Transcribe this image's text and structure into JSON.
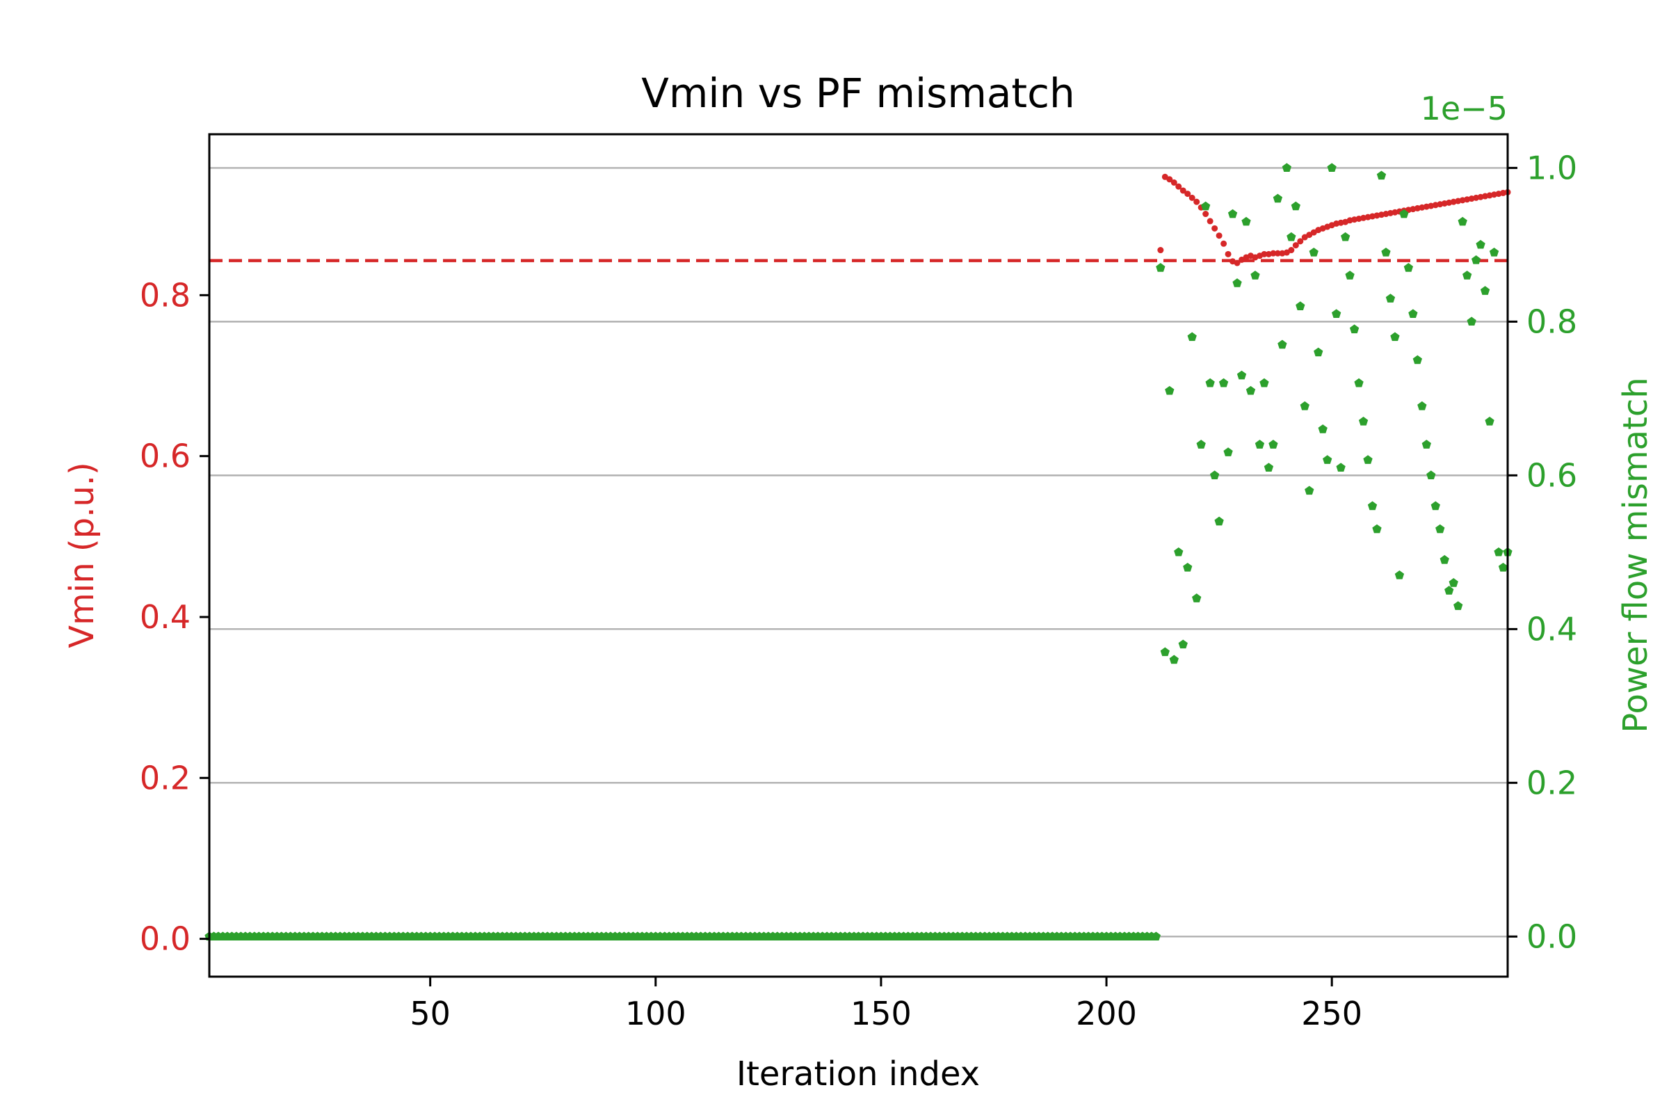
{
  "chart_data": {
    "type": "scatter",
    "title": "Vmin vs PF mismatch",
    "xlabel": "Iteration index",
    "xlim": [
      1,
      289
    ],
    "xticks": [
      50,
      100,
      150,
      200,
      250
    ],
    "grid": "horizontal",
    "colors": {
      "vmin": "#d62728",
      "mismatch": "#2ca02c",
      "grid": "#b0b0b0",
      "axes": "#000000"
    },
    "left_axis": {
      "label": "Vmin (p.u.)",
      "ylim": [
        -0.047,
        1.0
      ],
      "ticks": [
        0.0,
        0.2,
        0.4,
        0.6,
        0.8
      ],
      "tick_labels": [
        "0.0",
        "0.2",
        "0.4",
        "0.6",
        "0.8"
      ]
    },
    "right_axis": {
      "label": "Power flow mismatch",
      "offset_text": "1e−5",
      "ylim": [
        -0.0522,
        1.0438
      ],
      "ticks": [
        0.0,
        0.2,
        0.4,
        0.6,
        0.8,
        1.0
      ],
      "tick_labels": [
        "0.0",
        "0.2",
        "0.4",
        "0.6",
        "0.8",
        "1.0"
      ]
    },
    "reference_line": {
      "axis": "left",
      "y": 0.843,
      "style": "dashed"
    },
    "series": [
      {
        "axis": "left",
        "marker": "dot",
        "data": [
          [
            212,
            0.856
          ],
          [
            213,
            0.947
          ],
          [
            214,
            0.944
          ],
          [
            215,
            0.94
          ],
          [
            216,
            0.935
          ],
          [
            217,
            0.93
          ],
          [
            218,
            0.926
          ],
          [
            219,
            0.921
          ],
          [
            220,
            0.916
          ],
          [
            221,
            0.909
          ],
          [
            222,
            0.901
          ],
          [
            223,
            0.892
          ],
          [
            224,
            0.883
          ],
          [
            225,
            0.874
          ],
          [
            226,
            0.864
          ],
          [
            227,
            0.851
          ],
          [
            228,
            0.842
          ],
          [
            229,
            0.84
          ],
          [
            230,
            0.844
          ],
          [
            231,
            0.847
          ],
          [
            232,
            0.849
          ],
          [
            233,
            0.847
          ],
          [
            234,
            0.849
          ],
          [
            235,
            0.851
          ],
          [
            236,
            0.851
          ],
          [
            237,
            0.852
          ],
          [
            238,
            0.852
          ],
          [
            239,
            0.852
          ],
          [
            240,
            0.853
          ],
          [
            241,
            0.856
          ],
          [
            242,
            0.862
          ],
          [
            243,
            0.867
          ],
          [
            244,
            0.872
          ],
          [
            245,
            0.875
          ],
          [
            246,
            0.878
          ],
          [
            247,
            0.881
          ],
          [
            248,
            0.883
          ],
          [
            249,
            0.885
          ],
          [
            250,
            0.887
          ],
          [
            251,
            0.889
          ],
          [
            252,
            0.89
          ],
          [
            253,
            0.891
          ],
          [
            254,
            0.893
          ],
          [
            255,
            0.894
          ],
          [
            256,
            0.895
          ],
          [
            257,
            0.896
          ],
          [
            258,
            0.897
          ],
          [
            259,
            0.898
          ],
          [
            260,
            0.899
          ],
          [
            261,
            0.9
          ],
          [
            262,
            0.901
          ],
          [
            263,
            0.902
          ],
          [
            264,
            0.903
          ],
          [
            265,
            0.904
          ],
          [
            266,
            0.905
          ],
          [
            267,
            0.906
          ],
          [
            268,
            0.907
          ],
          [
            269,
            0.908
          ],
          [
            270,
            0.909
          ],
          [
            271,
            0.91
          ],
          [
            272,
            0.911
          ],
          [
            273,
            0.912
          ],
          [
            274,
            0.913
          ],
          [
            275,
            0.914
          ],
          [
            276,
            0.915
          ],
          [
            277,
            0.916
          ],
          [
            278,
            0.917
          ],
          [
            279,
            0.918
          ],
          [
            280,
            0.919
          ],
          [
            281,
            0.92
          ],
          [
            282,
            0.921
          ],
          [
            283,
            0.922
          ],
          [
            284,
            0.923
          ],
          [
            285,
            0.924
          ],
          [
            286,
            0.925
          ],
          [
            287,
            0.926
          ],
          [
            288,
            0.927
          ],
          [
            289,
            0.928
          ]
        ]
      },
      {
        "axis": "right",
        "marker": "pentagon",
        "zero_run": {
          "from": 1,
          "to": 211,
          "y": 0.0
        },
        "data": [
          [
            212,
            0.87
          ],
          [
            213,
            0.37
          ],
          [
            214,
            0.71
          ],
          [
            215,
            0.36
          ],
          [
            216,
            0.5
          ],
          [
            217,
            0.38
          ],
          [
            218,
            0.48
          ],
          [
            219,
            0.78
          ],
          [
            220,
            0.44
          ],
          [
            221,
            0.64
          ],
          [
            222,
            0.95
          ],
          [
            223,
            0.72
          ],
          [
            224,
            0.6
          ],
          [
            225,
            0.54
          ],
          [
            226,
            0.72
          ],
          [
            227,
            0.63
          ],
          [
            228,
            0.94
          ],
          [
            229,
            0.85
          ],
          [
            230,
            0.73
          ],
          [
            231,
            0.93
          ],
          [
            232,
            0.71
          ],
          [
            233,
            0.86
          ],
          [
            234,
            0.64
          ],
          [
            235,
            0.72
          ],
          [
            236,
            0.61
          ],
          [
            237,
            0.64
          ],
          [
            238,
            0.96
          ],
          [
            239,
            0.77
          ],
          [
            240,
            1.0
          ],
          [
            241,
            0.91
          ],
          [
            242,
            0.95
          ],
          [
            243,
            0.82
          ],
          [
            244,
            0.69
          ],
          [
            245,
            0.58
          ],
          [
            246,
            0.89
          ],
          [
            247,
            0.76
          ],
          [
            248,
            0.66
          ],
          [
            249,
            0.62
          ],
          [
            250,
            1.0
          ],
          [
            251,
            0.81
          ],
          [
            252,
            0.61
          ],
          [
            253,
            0.91
          ],
          [
            254,
            0.86
          ],
          [
            255,
            0.79
          ],
          [
            256,
            0.72
          ],
          [
            257,
            0.67
          ],
          [
            258,
            0.62
          ],
          [
            259,
            0.56
          ],
          [
            260,
            0.53
          ],
          [
            261,
            0.99
          ],
          [
            262,
            0.89
          ],
          [
            263,
            0.83
          ],
          [
            264,
            0.78
          ],
          [
            265,
            0.47
          ],
          [
            266,
            0.94
          ],
          [
            267,
            0.87
          ],
          [
            268,
            0.81
          ],
          [
            269,
            0.75
          ],
          [
            270,
            0.69
          ],
          [
            271,
            0.64
          ],
          [
            272,
            0.6
          ],
          [
            273,
            0.56
          ],
          [
            274,
            0.53
          ],
          [
            275,
            0.49
          ],
          [
            276,
            0.45
          ],
          [
            277,
            0.46
          ],
          [
            278,
            0.43
          ],
          [
            279,
            0.93
          ],
          [
            280,
            0.86
          ],
          [
            281,
            0.8
          ],
          [
            282,
            0.88
          ],
          [
            283,
            0.9
          ],
          [
            284,
            0.84
          ],
          [
            285,
            0.67
          ],
          [
            286,
            0.89
          ],
          [
            287,
            0.5
          ],
          [
            288,
            0.48
          ],
          [
            289,
            0.5
          ]
        ]
      }
    ]
  }
}
